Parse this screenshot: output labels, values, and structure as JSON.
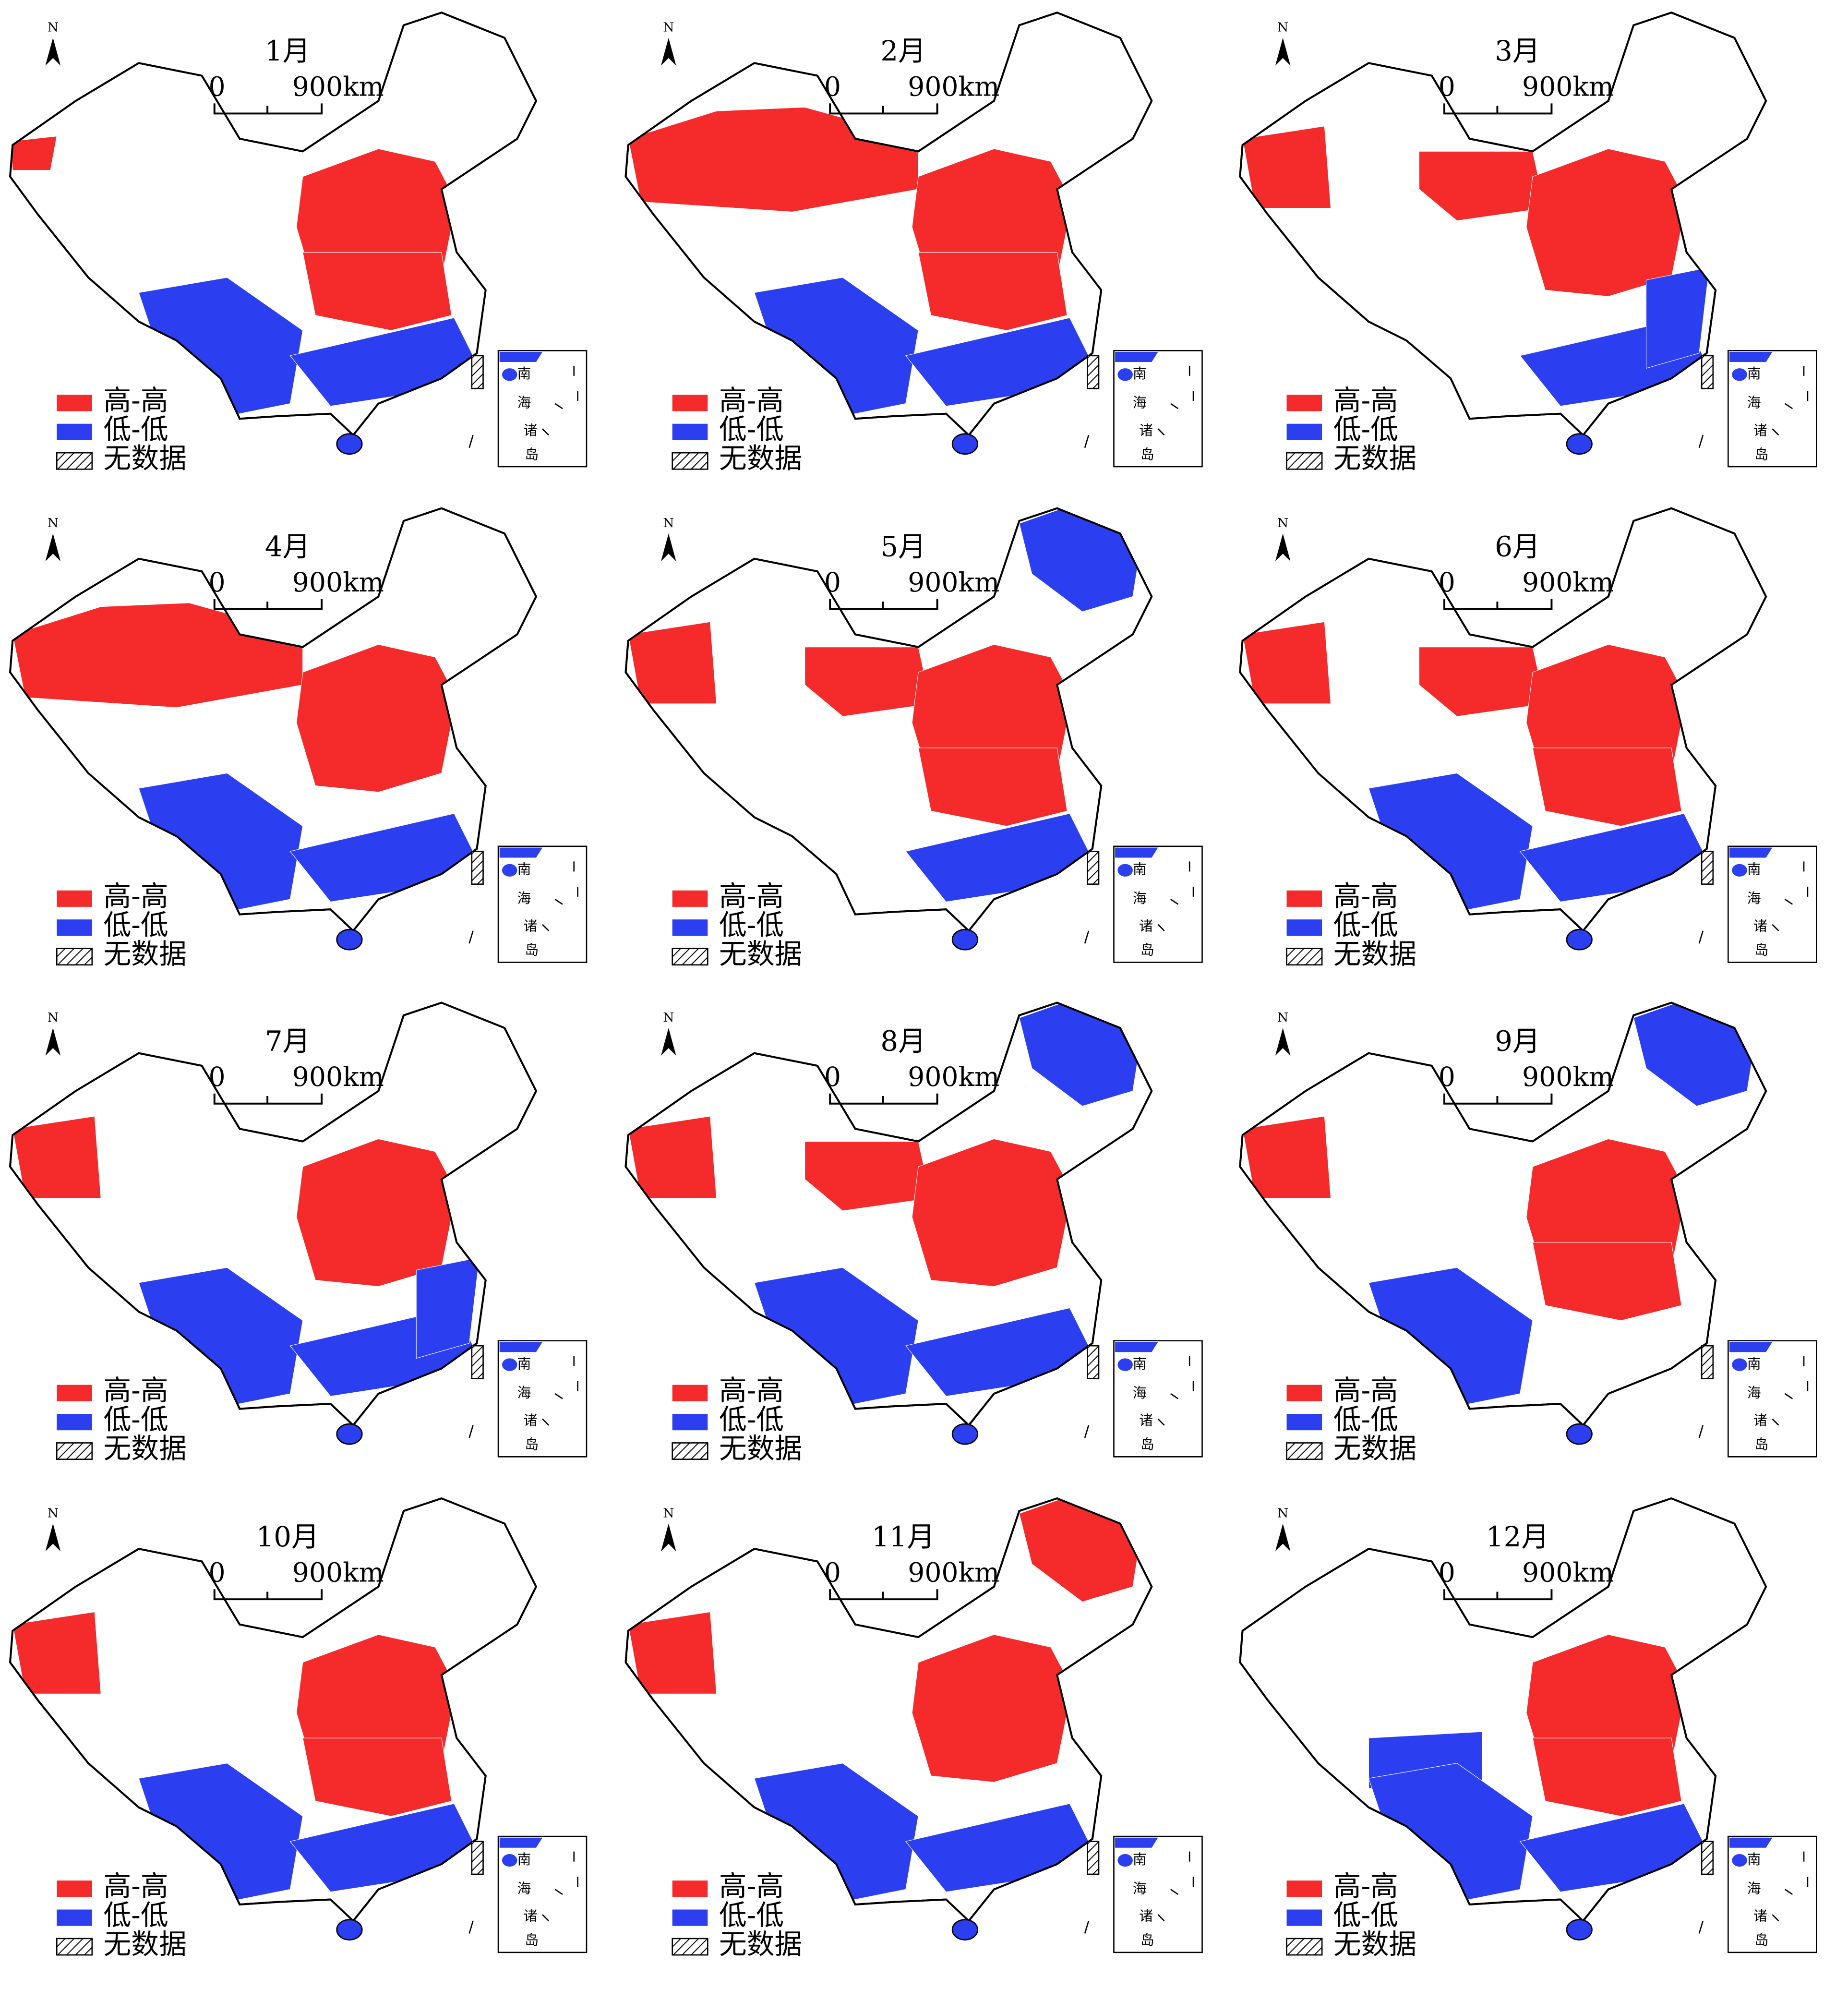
{
  "panels": [
    {
      "title": "1月"
    },
    {
      "title": "2月"
    },
    {
      "title": "3月"
    },
    {
      "title": "4月"
    },
    {
      "title": "5月"
    },
    {
      "title": "6月"
    },
    {
      "title": "7月"
    },
    {
      "title": "8月"
    },
    {
      "title": "9月"
    },
    {
      "title": "10月"
    },
    {
      "title": "11月"
    },
    {
      "title": "12月"
    }
  ],
  "scale": {
    "zero": "0",
    "distance": "900km"
  },
  "legend": [
    "高-高",
    "低-低",
    "无数据"
  ],
  "inset": [
    "南",
    "海",
    "诸",
    "岛"
  ],
  "north": "N"
}
